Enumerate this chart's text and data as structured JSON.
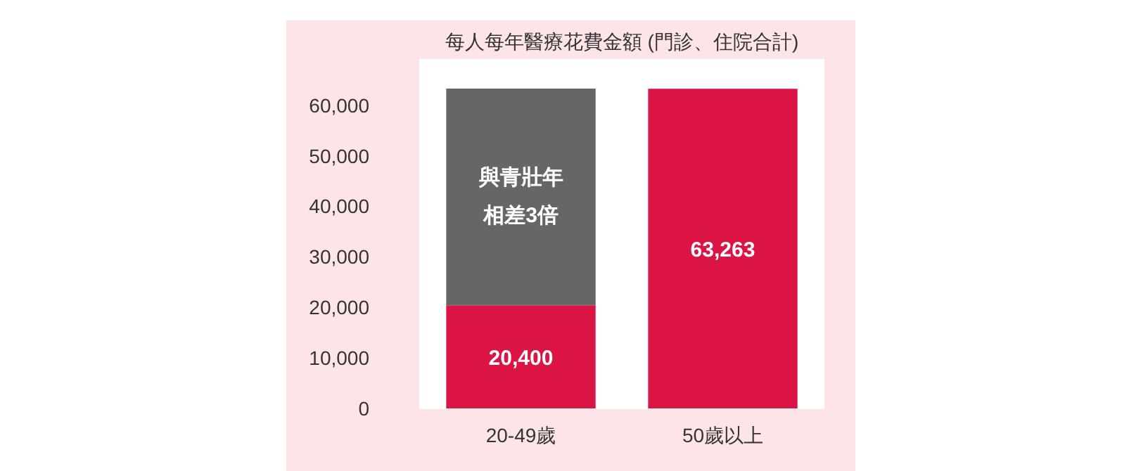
{
  "chart_data": {
    "type": "bar",
    "title": "每人每年醫療花費金額 (門診、住院合計)",
    "categories": [
      "20-49歲",
      "50歲以上"
    ],
    "stacked": true,
    "series": [
      {
        "color": "#dc1446",
        "values": [
          20400,
          63263
        ],
        "value_labels": [
          "20,400",
          "63,263"
        ]
      },
      {
        "color": "#666666",
        "values": [
          42900,
          null
        ],
        "value_labels": [
          null,
          null
        ]
      }
    ],
    "ylim": [
      0,
      69000
    ],
    "yticks": [
      {
        "value": 0,
        "label": "0"
      },
      {
        "value": 10000,
        "label": "10,000"
      },
      {
        "value": 20000,
        "label": "20,000"
      },
      {
        "value": 30000,
        "label": "30,000"
      },
      {
        "value": 40000,
        "label": "40,000"
      },
      {
        "value": 50000,
        "label": "50,000"
      },
      {
        "value": 60000,
        "label": "60,000"
      }
    ],
    "annotations": [
      "與青壯年相差3倍"
    ],
    "grid": false
  }
}
